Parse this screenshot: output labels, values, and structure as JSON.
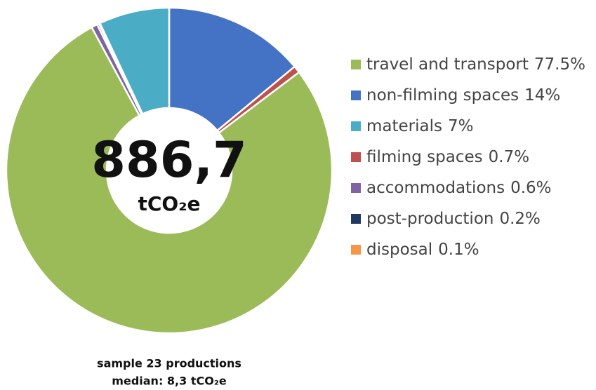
{
  "chart_data": {
    "type": "donut",
    "categories": [
      "non-filming spaces",
      "filming spaces",
      "travel and transport",
      "accommodations",
      "post-production",
      "disposal",
      "materials"
    ],
    "values": [
      14,
      0.7,
      77.5,
      0.6,
      0.2,
      0.1,
      7
    ],
    "value_labels": [
      "14%",
      "0.7%",
      "77.5%",
      "0.6%",
      "0.2%",
      "0.1%",
      "7%"
    ],
    "colors": [
      "#4472c4",
      "#c0504d",
      "#9bbb59",
      "#8064a2",
      "#1f3864",
      "#f79646",
      "#4bacc6"
    ],
    "center_value": "886,7",
    "center_unit": "tCO₂e",
    "notes": [
      "sample 23 productions",
      "median: 8,3 tCO₂e"
    ],
    "legend": "right"
  }
}
